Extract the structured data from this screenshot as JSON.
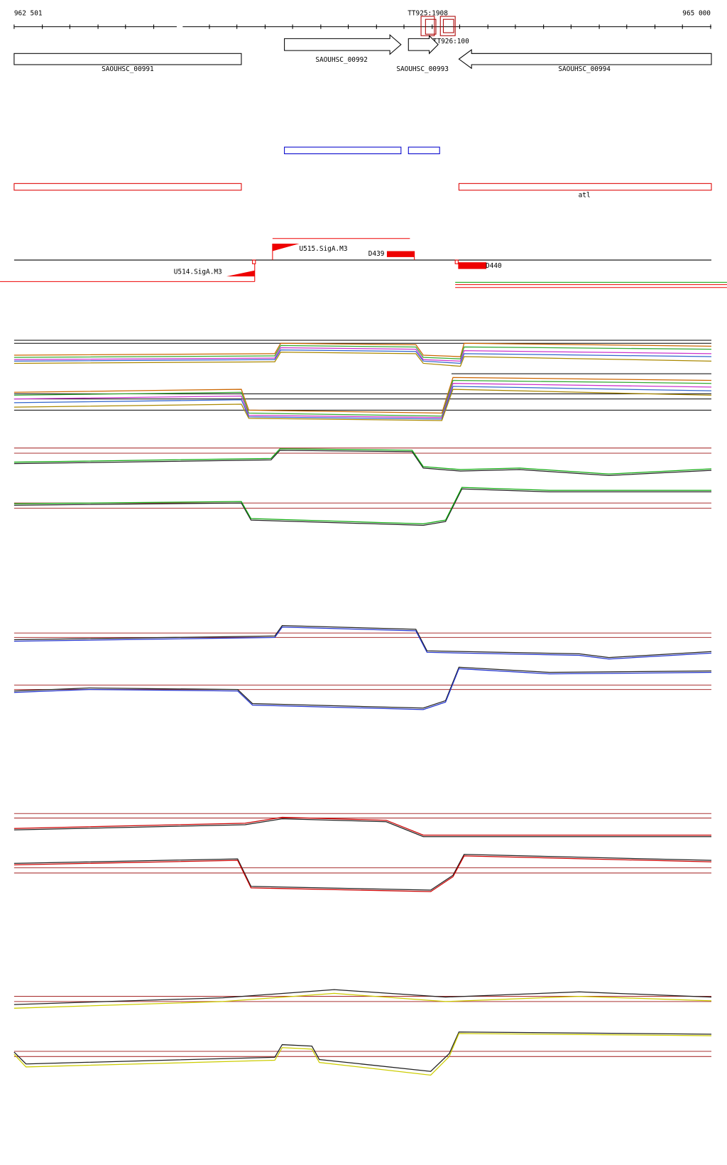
{
  "ruler": {
    "start": "962 501",
    "end": "965 000"
  },
  "genes": [
    "SAOUHSC_00991",
    "SAOUHSC_00992",
    "SAOUHSC_00993",
    "SAOUHSC_00994"
  ],
  "transcripts": [
    "TT925:1908",
    "TT926:100"
  ],
  "annotation": "atl",
  "promoters": [
    "U515.SigA.M3",
    "U514.SigA.M3"
  ],
  "terminators": [
    "D439",
    "D440"
  ]
}
